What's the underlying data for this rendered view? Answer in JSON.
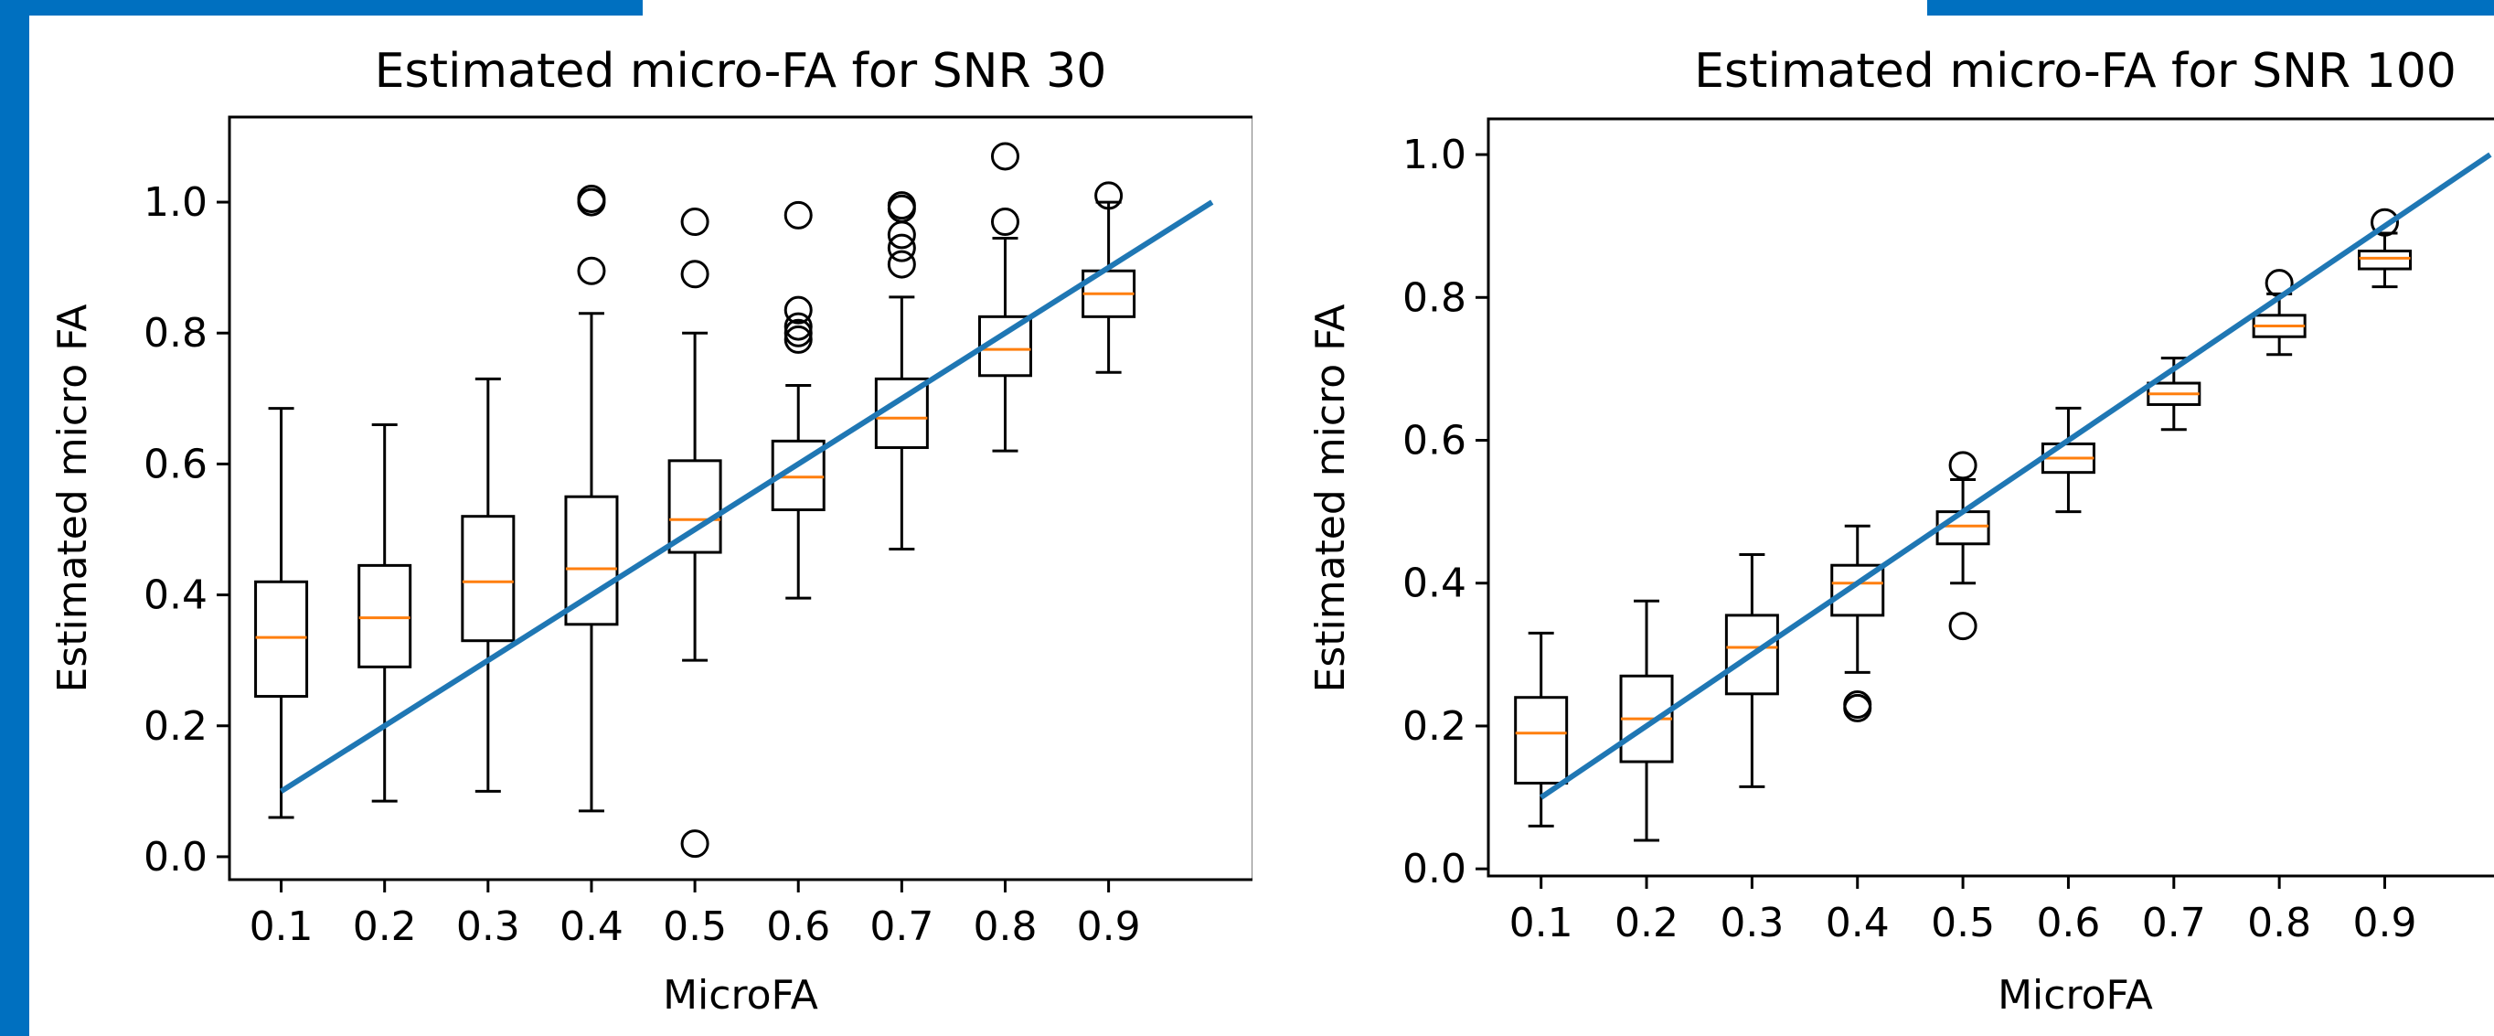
{
  "colors": {
    "frame_accent": "#0070c0",
    "box": "#000000",
    "median": "#ff7f0e",
    "reference_line": "#1f77b4"
  },
  "chart_data": [
    {
      "type": "box",
      "title": "Estimated micro-FA for SNR 30",
      "xlabel": "MicroFA",
      "ylabel": "Estimated micro FA",
      "categories": [
        "0.1",
        "0.2",
        "0.3",
        "0.4",
        "0.5",
        "0.6",
        "0.7",
        "0.8",
        "0.9"
      ],
      "x": [
        0.1,
        0.2,
        0.3,
        0.4,
        0.5,
        0.6,
        0.7,
        0.8,
        0.9
      ],
      "yticks": [
        "0.0",
        "0.2",
        "0.4",
        "0.6",
        "0.8",
        "1.0"
      ],
      "ytick_values": [
        0.0,
        0.2,
        0.4,
        0.6,
        0.8,
        1.0
      ],
      "xlim": [
        0.05,
        1.04
      ],
      "ylim": [
        -0.035,
        1.13
      ],
      "boxes": [
        {
          "whisker_low": 0.06,
          "q1": 0.245,
          "median": 0.335,
          "q3": 0.42,
          "whisker_high": 0.685,
          "outliers": []
        },
        {
          "whisker_low": 0.085,
          "q1": 0.29,
          "median": 0.365,
          "q3": 0.445,
          "whisker_high": 0.66,
          "outliers": []
        },
        {
          "whisker_low": 0.1,
          "q1": 0.33,
          "median": 0.42,
          "q3": 0.52,
          "whisker_high": 0.73,
          "outliers": []
        },
        {
          "whisker_low": 0.07,
          "q1": 0.355,
          "median": 0.44,
          "q3": 0.55,
          "whisker_high": 0.83,
          "outliers": [
            1.0,
            1.005,
            0.895
          ]
        },
        {
          "whisker_low": 0.3,
          "q1": 0.465,
          "median": 0.515,
          "q3": 0.605,
          "whisker_high": 0.8,
          "outliers": [
            0.02,
            0.97,
            0.89
          ]
        },
        {
          "whisker_low": 0.395,
          "q1": 0.53,
          "median": 0.58,
          "q3": 0.635,
          "whisker_high": 0.72,
          "outliers": [
            0.98,
            0.835,
            0.81,
            0.8,
            0.79
          ]
        },
        {
          "whisker_low": 0.47,
          "q1": 0.625,
          "median": 0.67,
          "q3": 0.73,
          "whisker_high": 0.855,
          "outliers": [
            0.995,
            0.99,
            0.95,
            0.93,
            0.905
          ]
        },
        {
          "whisker_low": 0.62,
          "q1": 0.735,
          "median": 0.775,
          "q3": 0.825,
          "whisker_high": 0.945,
          "outliers": [
            1.07,
            0.97
          ]
        },
        {
          "whisker_low": 0.74,
          "q1": 0.825,
          "median": 0.86,
          "q3": 0.895,
          "whisker_high": 1.0,
          "outliers": [
            1.01
          ]
        }
      ],
      "reference_line": {
        "x": [
          0.1,
          1.0
        ],
        "y": [
          0.1,
          1.0
        ]
      }
    },
    {
      "type": "box",
      "title": "Estimated micro-FA for SNR 100",
      "xlabel": "MicroFA",
      "ylabel": "Estimated micro FA",
      "categories": [
        "0.1",
        "0.2",
        "0.3",
        "0.4",
        "0.5",
        "0.6",
        "0.7",
        "0.8",
        "0.9"
      ],
      "x": [
        0.1,
        0.2,
        0.3,
        0.4,
        0.5,
        0.6,
        0.7,
        0.8,
        0.9
      ],
      "yticks": [
        "0.0",
        "0.2",
        "0.4",
        "0.6",
        "0.8",
        "1.0"
      ],
      "ytick_values": [
        0.0,
        0.2,
        0.4,
        0.6,
        0.8,
        1.0
      ],
      "xlim": [
        0.05,
        1.04
      ],
      "ylim": [
        -0.01,
        1.05
      ],
      "boxes": [
        {
          "whisker_low": 0.06,
          "q1": 0.12,
          "median": 0.19,
          "q3": 0.24,
          "whisker_high": 0.33,
          "outliers": []
        },
        {
          "whisker_low": 0.04,
          "q1": 0.15,
          "median": 0.21,
          "q3": 0.27,
          "whisker_high": 0.375,
          "outliers": []
        },
        {
          "whisker_low": 0.115,
          "q1": 0.245,
          "median": 0.31,
          "q3": 0.355,
          "whisker_high": 0.44,
          "outliers": []
        },
        {
          "whisker_low": 0.275,
          "q1": 0.355,
          "median": 0.4,
          "q3": 0.425,
          "whisker_high": 0.48,
          "outliers": [
            0.23,
            0.225
          ]
        },
        {
          "whisker_low": 0.4,
          "q1": 0.455,
          "median": 0.48,
          "q3": 0.5,
          "whisker_high": 0.545,
          "outliers": [
            0.565,
            0.34
          ]
        },
        {
          "whisker_low": 0.5,
          "q1": 0.555,
          "median": 0.575,
          "q3": 0.595,
          "whisker_high": 0.645,
          "outliers": []
        },
        {
          "whisker_low": 0.615,
          "q1": 0.65,
          "median": 0.665,
          "q3": 0.68,
          "whisker_high": 0.715,
          "outliers": []
        },
        {
          "whisker_low": 0.72,
          "q1": 0.745,
          "median": 0.76,
          "q3": 0.775,
          "whisker_high": 0.805,
          "outliers": [
            0.82
          ]
        },
        {
          "whisker_low": 0.815,
          "q1": 0.84,
          "median": 0.855,
          "q3": 0.865,
          "whisker_high": 0.89,
          "outliers": [
            0.905
          ]
        }
      ],
      "reference_line": {
        "x": [
          0.1,
          1.0
        ],
        "y": [
          0.1,
          1.0
        ]
      }
    }
  ]
}
